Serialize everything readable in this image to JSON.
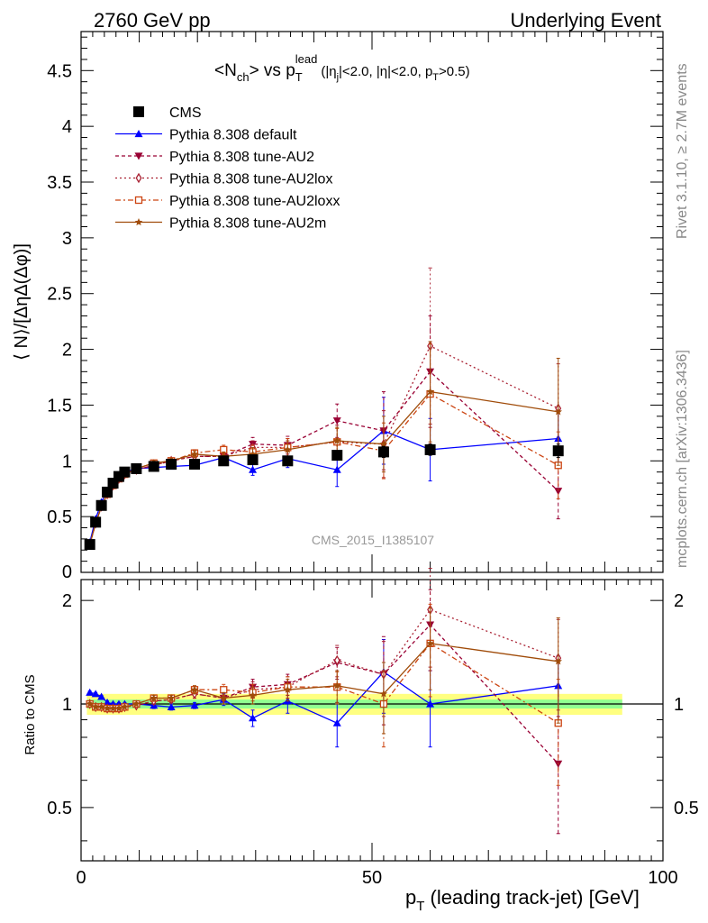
{
  "header": {
    "left": "2760 GeV pp",
    "right": "Underlying Event"
  },
  "side_labels": {
    "rivet": "Rivet 3.1.10, ≥ 2.7M events",
    "mcplots": "mcplots.cern.ch [arXiv:1306.3436]"
  },
  "watermark": "CMS_2015_I1385107",
  "chart_data": [
    {
      "type": "scatter",
      "panel": "main",
      "title_parts": {
        "a": "<N",
        "a_sub": "ch",
        "b": "> vs p",
        "b_sup": "lead",
        "b_sub": "T",
        "c": "(|η",
        "c_sub": "j",
        "d": "|<2.0, |η|<2.0, p",
        "d_sub": "T",
        "e": ">0.5)"
      },
      "ylabel": "⟨ N⟩/[ΔηΔ(Δφ)]",
      "xlabel": "p",
      "xlabel_sub": "T",
      "xlabel_rest": " (leading track-jet) [GeV]",
      "xlim": [
        0,
        100
      ],
      "ylim": [
        0,
        4.85
      ],
      "y_ticks": [
        "0.5",
        "1",
        "1.5",
        "2",
        "2.5",
        "3",
        "3.5",
        "4",
        "4.5"
      ],
      "y_zero_label": "0",
      "x_ticks": [
        "0",
        "50",
        "100"
      ],
      "legend_position": "top-left",
      "series": [
        {
          "name": "CMS",
          "color": "#000000",
          "marker": "square",
          "dash": "none",
          "x": [
            1.5,
            2.5,
            3.5,
            4.5,
            5.5,
            6.5,
            7.5,
            9.5,
            12.5,
            15.5,
            19.5,
            24.5,
            29.5,
            35.5,
            44,
            52,
            60,
            82
          ],
          "y": [
            0.25,
            0.45,
            0.6,
            0.72,
            0.8,
            0.86,
            0.9,
            0.93,
            0.95,
            0.97,
            0.97,
            1.0,
            1.01,
            1.0,
            1.05,
            1.08,
            1.1,
            1.09
          ],
          "err": [
            0.02,
            0.02,
            0.02,
            0.02,
            0.02,
            0.02,
            0.02,
            0.02,
            0.02,
            0.02,
            0.02,
            0.02,
            0.03,
            0.03,
            0.04,
            0.05,
            0.05,
            0.06
          ]
        },
        {
          "name": "Pythia 8.308 default",
          "color": "#0000ff",
          "marker": "triangle-up",
          "dash": "none",
          "x": [
            1.5,
            2.5,
            3.5,
            4.5,
            5.5,
            6.5,
            7.5,
            9.5,
            12.5,
            15.5,
            19.5,
            24.5,
            29.5,
            35.5,
            44,
            52,
            60,
            82
          ],
          "y": [
            0.27,
            0.48,
            0.63,
            0.73,
            0.8,
            0.86,
            0.9,
            0.93,
            0.94,
            0.95,
            0.96,
            1.03,
            0.92,
            1.02,
            0.92,
            1.27,
            1.1,
            1.2
          ],
          "err": [
            0.01,
            0.01,
            0.01,
            0.01,
            0.01,
            0.01,
            0.01,
            0.01,
            0.02,
            0.02,
            0.02,
            0.04,
            0.05,
            0.08,
            0.15,
            0.3,
            0.28,
            0.25
          ]
        },
        {
          "name": "Pythia 8.308 tune-AU2",
          "color": "#990033",
          "marker": "triangle-down",
          "dash": "4,3",
          "x": [
            1.5,
            2.5,
            3.5,
            4.5,
            5.5,
            6.5,
            7.5,
            9.5,
            12.5,
            15.5,
            19.5,
            24.5,
            29.5,
            35.5,
            44,
            52,
            60,
            82
          ],
          "y": [
            0.25,
            0.44,
            0.59,
            0.7,
            0.78,
            0.84,
            0.88,
            0.92,
            0.96,
            1.0,
            1.04,
            1.04,
            1.15,
            1.14,
            1.36,
            1.27,
            1.8,
            0.73
          ],
          "err": [
            0.01,
            0.01,
            0.01,
            0.01,
            0.01,
            0.01,
            0.01,
            0.01,
            0.02,
            0.02,
            0.03,
            0.04,
            0.06,
            0.08,
            0.15,
            0.35,
            0.5,
            0.25
          ]
        },
        {
          "name": "Pythia 8.308 tune-AU2lox",
          "color": "#aa2233",
          "marker": "diamond-open",
          "dash": "2,3",
          "x": [
            1.5,
            2.5,
            3.5,
            4.5,
            5.5,
            6.5,
            7.5,
            9.5,
            12.5,
            15.5,
            19.5,
            24.5,
            29.5,
            35.5,
            44,
            52,
            60,
            82
          ],
          "y": [
            0.25,
            0.44,
            0.59,
            0.7,
            0.78,
            0.84,
            0.88,
            0.92,
            0.96,
            1.0,
            1.04,
            1.04,
            1.12,
            1.12,
            1.17,
            1.15,
            2.03,
            1.47
          ],
          "err": [
            0.01,
            0.01,
            0.01,
            0.01,
            0.01,
            0.01,
            0.01,
            0.01,
            0.02,
            0.02,
            0.03,
            0.04,
            0.06,
            0.08,
            0.15,
            0.3,
            0.7,
            0.4
          ]
        },
        {
          "name": "Pythia 8.308 tune-AU2loxx",
          "color": "#cc4411",
          "marker": "square-open",
          "dash": "6,3,2,3",
          "x": [
            1.5,
            2.5,
            3.5,
            4.5,
            5.5,
            6.5,
            7.5,
            9.5,
            12.5,
            15.5,
            19.5,
            24.5,
            29.5,
            35.5,
            44,
            52,
            60,
            82
          ],
          "y": [
            0.25,
            0.44,
            0.59,
            0.7,
            0.78,
            0.84,
            0.88,
            0.93,
            0.98,
            1.0,
            1.07,
            1.1,
            1.08,
            1.12,
            1.17,
            1.09,
            1.6,
            0.96
          ],
          "err": [
            0.01,
            0.01,
            0.01,
            0.01,
            0.01,
            0.01,
            0.01,
            0.01,
            0.02,
            0.02,
            0.03,
            0.04,
            0.06,
            0.08,
            0.12,
            0.25,
            0.45,
            0.3
          ]
        },
        {
          "name": "Pythia 8.308 tune-AU2m",
          "color": "#a04c0a",
          "marker": "star",
          "dash": "none",
          "x": [
            1.5,
            2.5,
            3.5,
            4.5,
            5.5,
            6.5,
            7.5,
            9.5,
            12.5,
            15.5,
            19.5,
            24.5,
            29.5,
            35.5,
            44,
            52,
            60,
            82
          ],
          "y": [
            0.25,
            0.44,
            0.59,
            0.7,
            0.78,
            0.84,
            0.88,
            0.93,
            0.98,
            1.0,
            1.06,
            1.04,
            1.06,
            1.1,
            1.18,
            1.15,
            1.62,
            1.44
          ],
          "err": [
            0.01,
            0.01,
            0.01,
            0.01,
            0.01,
            0.01,
            0.01,
            0.01,
            0.02,
            0.02,
            0.03,
            0.04,
            0.06,
            0.08,
            0.12,
            0.25,
            0.45,
            0.48
          ]
        }
      ]
    },
    {
      "type": "scatter",
      "panel": "ratio",
      "ylabel": "Ratio to CMS",
      "ylim": [
        0.35,
        2.3
      ],
      "y_ticks": [
        "0.5",
        "1",
        "2"
      ],
      "band_inner_color": "#90ff90",
      "band_outer_color": "#ffff80",
      "band_inner_halfwidth": 0.03,
      "band_outer_halfwidth": 0.07,
      "series": [
        {
          "name": "Pythia 8.308 default",
          "color": "#0000ff",
          "marker": "triangle-up",
          "dash": "none",
          "x": [
            1.5,
            2.5,
            3.5,
            4.5,
            5.5,
            6.5,
            7.5,
            9.5,
            12.5,
            15.5,
            19.5,
            24.5,
            29.5,
            35.5,
            44,
            52,
            60,
            82
          ],
          "y": [
            1.08,
            1.07,
            1.05,
            1.01,
            1.0,
            1.0,
            1.0,
            1.0,
            0.99,
            0.98,
            0.99,
            1.03,
            0.91,
            1.02,
            0.88,
            1.24,
            1.0,
            1.13
          ],
          "err": [
            0.01,
            0.01,
            0.01,
            0.01,
            0.01,
            0.01,
            0.01,
            0.01,
            0.02,
            0.02,
            0.02,
            0.04,
            0.05,
            0.08,
            0.13,
            0.3,
            0.25,
            0.25
          ]
        },
        {
          "name": "Pythia 8.308 tune-AU2",
          "color": "#990033",
          "marker": "triangle-down",
          "dash": "4,3",
          "x": [
            1.5,
            2.5,
            3.5,
            4.5,
            5.5,
            6.5,
            7.5,
            9.5,
            12.5,
            15.5,
            19.5,
            24.5,
            29.5,
            35.5,
            44,
            52,
            60,
            82
          ],
          "y": [
            1.0,
            0.98,
            0.98,
            0.97,
            0.97,
            0.97,
            0.98,
            0.99,
            1.02,
            1.03,
            1.07,
            1.04,
            1.12,
            1.14,
            1.32,
            1.22,
            1.7,
            0.67
          ],
          "err": [
            0.01,
            0.01,
            0.01,
            0.01,
            0.01,
            0.01,
            0.01,
            0.01,
            0.02,
            0.02,
            0.03,
            0.04,
            0.06,
            0.08,
            0.14,
            0.35,
            0.45,
            0.25
          ]
        },
        {
          "name": "Pythia 8.308 tune-AU2lox",
          "color": "#aa2233",
          "marker": "diamond-open",
          "dash": "2,3",
          "x": [
            1.5,
            2.5,
            3.5,
            4.5,
            5.5,
            6.5,
            7.5,
            9.5,
            12.5,
            15.5,
            19.5,
            24.5,
            29.5,
            35.5,
            44,
            52,
            60,
            82
          ],
          "y": [
            1.0,
            0.98,
            0.98,
            0.97,
            0.97,
            0.97,
            0.98,
            0.99,
            1.02,
            1.03,
            1.07,
            1.04,
            1.1,
            1.12,
            1.34,
            1.22,
            1.88,
            1.36
          ],
          "err": [
            0.01,
            0.01,
            0.01,
            0.01,
            0.01,
            0.01,
            0.01,
            0.01,
            0.02,
            0.02,
            0.03,
            0.04,
            0.06,
            0.08,
            0.14,
            0.3,
            0.6,
            0.4
          ]
        },
        {
          "name": "Pythia 8.308 tune-AU2loxx",
          "color": "#cc4411",
          "marker": "square-open",
          "dash": "6,3,2,3",
          "x": [
            1.5,
            2.5,
            3.5,
            4.5,
            5.5,
            6.5,
            7.5,
            9.5,
            12.5,
            15.5,
            19.5,
            24.5,
            29.5,
            35.5,
            44,
            52,
            60,
            82
          ],
          "y": [
            1.0,
            0.98,
            0.98,
            0.97,
            0.97,
            0.97,
            0.98,
            1.0,
            1.04,
            1.04,
            1.1,
            1.1,
            1.08,
            1.12,
            1.12,
            1.0,
            1.5,
            0.88
          ],
          "err": [
            0.01,
            0.01,
            0.01,
            0.01,
            0.01,
            0.01,
            0.01,
            0.01,
            0.02,
            0.02,
            0.03,
            0.04,
            0.06,
            0.08,
            0.12,
            0.25,
            0.45,
            0.3
          ]
        },
        {
          "name": "Pythia 8.308 tune-AU2m",
          "color": "#a04c0a",
          "marker": "star",
          "dash": "none",
          "x": [
            1.5,
            2.5,
            3.5,
            4.5,
            5.5,
            6.5,
            7.5,
            9.5,
            12.5,
            15.5,
            19.5,
            24.5,
            29.5,
            35.5,
            44,
            52,
            60,
            82
          ],
          "y": [
            1.0,
            0.98,
            0.98,
            0.97,
            0.97,
            0.97,
            0.98,
            1.0,
            1.04,
            1.04,
            1.1,
            1.04,
            1.06,
            1.1,
            1.13,
            1.07,
            1.5,
            1.33
          ],
          "err": [
            0.01,
            0.01,
            0.01,
            0.01,
            0.01,
            0.01,
            0.01,
            0.01,
            0.02,
            0.02,
            0.03,
            0.04,
            0.06,
            0.08,
            0.12,
            0.25,
            0.4,
            0.45
          ]
        }
      ]
    }
  ]
}
